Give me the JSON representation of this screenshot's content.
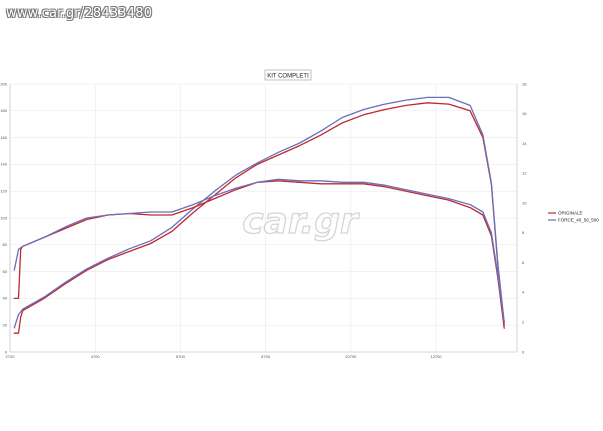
{
  "watermark": {
    "top_text": "www.car.gr/28433480",
    "center_text": "car.gr"
  },
  "chart_data": {
    "type": "line",
    "title": "KIT COMPLETI",
    "xlabel": "",
    "ylabel": "",
    "y2label": "",
    "xlim": [
      2700,
      14600
    ],
    "x_ticks": [
      "2700",
      "4700",
      "6700",
      "8700",
      "10700",
      "12700"
    ],
    "ylim": [
      0,
      200
    ],
    "y_ticks": [
      "0",
      "20",
      "40",
      "60",
      "80",
      "100",
      "120",
      "140",
      "160",
      "180",
      "200"
    ],
    "y2lim": [
      0,
      18
    ],
    "y2_ticks": [
      "0",
      "2",
      "4",
      "6",
      "8",
      "10",
      "12",
      "14",
      "16",
      "18"
    ],
    "grid": true,
    "legend_position": "right",
    "series": [
      {
        "name": "ORIGINALE",
        "color": "#c0282e",
        "axis": "left",
        "kind": "power",
        "x": [
          2800,
          2900,
          2950,
          3000,
          3500,
          4000,
          4500,
          5000,
          5500,
          6000,
          6500,
          7000,
          7500,
          8000,
          8500,
          9000,
          9500,
          10000,
          10500,
          11000,
          11500,
          12000,
          12500,
          13000,
          13500,
          13800,
          14000,
          14150,
          14300
        ],
        "y": [
          14,
          14,
          26,
          31,
          40,
          51,
          61,
          69,
          75,
          81,
          90,
          104,
          117,
          130,
          140,
          147,
          154,
          162,
          171,
          177,
          181,
          184,
          186,
          185,
          180,
          160,
          125,
          65,
          20
        ]
      },
      {
        "name": "FORCE_40_56_500",
        "color": "#6a6fb7",
        "axis": "left",
        "kind": "power",
        "x": [
          2800,
          2900,
          2950,
          3000,
          3500,
          4000,
          4500,
          5000,
          5500,
          6000,
          6500,
          7000,
          7500,
          8000,
          8500,
          9000,
          9500,
          10000,
          10500,
          11000,
          11500,
          12000,
          12500,
          13000,
          13500,
          13800,
          14000,
          14150,
          14300
        ],
        "y": [
          18,
          28,
          30,
          32,
          41,
          52,
          62,
          70,
          77,
          83,
          93,
          107,
          120,
          132,
          141,
          149,
          156,
          165,
          175,
          181,
          185,
          188,
          190,
          190,
          184,
          162,
          126,
          66,
          22
        ]
      },
      {
        "name": "ORIGINALE",
        "color": "#c0282e",
        "axis": "right",
        "kind": "torque",
        "x": [
          2800,
          2900,
          2950,
          3000,
          3500,
          4000,
          4500,
          5000,
          5500,
          6000,
          6500,
          7000,
          7500,
          8000,
          8500,
          9000,
          9500,
          10000,
          10500,
          11000,
          11500,
          12000,
          12500,
          13000,
          13500,
          13800,
          14000,
          14150,
          14300
        ],
        "y": [
          3.6,
          3.6,
          6.9,
          7.1,
          7.7,
          8.3,
          8.9,
          9.2,
          9.3,
          9.2,
          9.2,
          9.7,
          10.3,
          10.9,
          11.4,
          11.5,
          11.4,
          11.3,
          11.3,
          11.3,
          11.1,
          10.8,
          10.5,
          10.2,
          9.7,
          9.2,
          7.8,
          5.0,
          1.6
        ]
      },
      {
        "name": "FORCE_40_56_500",
        "color": "#6a6fb7",
        "axis": "right",
        "kind": "torque",
        "x": [
          2800,
          2900,
          2950,
          3000,
          3500,
          4000,
          4500,
          5000,
          5500,
          6000,
          6500,
          7000,
          7500,
          8000,
          8500,
          9000,
          9500,
          10000,
          10500,
          11000,
          11500,
          12000,
          12500,
          13000,
          13500,
          13800,
          14000,
          14150,
          14300
        ],
        "y": [
          5.5,
          6.9,
          7.0,
          7.1,
          7.7,
          8.4,
          9.0,
          9.2,
          9.3,
          9.4,
          9.4,
          9.9,
          10.5,
          11.0,
          11.4,
          11.6,
          11.5,
          11.5,
          11.4,
          11.4,
          11.2,
          10.9,
          10.6,
          10.3,
          9.9,
          9.4,
          8.0,
          5.2,
          2.0
        ]
      }
    ]
  }
}
